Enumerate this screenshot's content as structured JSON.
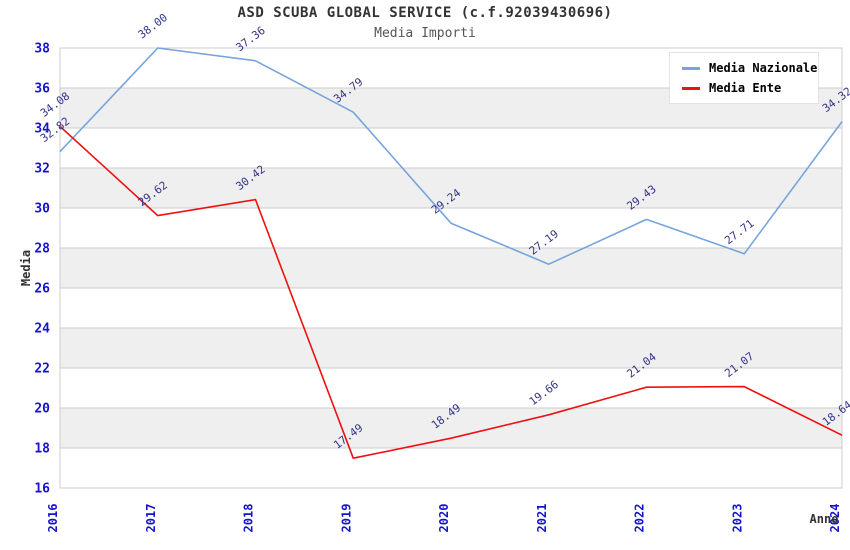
{
  "header": {
    "title": "ASD SCUBA GLOBAL SERVICE (c.f.92039430696)",
    "subtitle": "Media Importi"
  },
  "legend": {
    "items": [
      {
        "label": "Media Nazionale",
        "color": "#76a4dc"
      },
      {
        "label": "Media Ente",
        "color": "#ee1111"
      }
    ]
  },
  "chart_data": {
    "type": "line",
    "title": "ASD SCUBA GLOBAL SERVICE (c.f.92039430696)",
    "subtitle": "Media Importi",
    "xlabel": "Anno",
    "ylabel": "Media",
    "x": [
      2016,
      2017,
      2018,
      2019,
      2020,
      2021,
      2022,
      2023,
      2024
    ],
    "series": [
      {
        "name": "Media Nazionale",
        "color": "#76a4dc",
        "values": [
          32.82,
          38.0,
          37.36,
          34.79,
          29.24,
          27.19,
          29.43,
          27.71,
          34.32
        ]
      },
      {
        "name": "Media Ente",
        "color": "#ee1111",
        "values": [
          34.08,
          29.62,
          30.42,
          17.49,
          18.49,
          19.66,
          21.04,
          21.07,
          18.64
        ]
      }
    ],
    "ylim": [
      16,
      38
    ],
    "ytick_step": 2,
    "grid": "horizontal",
    "legend_position": "top-right",
    "bands": [
      [
        34,
        36
      ],
      [
        30,
        32
      ],
      [
        26,
        28
      ],
      [
        22,
        24
      ],
      [
        18,
        20
      ]
    ],
    "colors": {
      "tick_label": "#1414cc",
      "data_label": "#333388",
      "grid_line": "#cccccc",
      "band_fill": "#efefef",
      "axis_title": "#333333"
    }
  }
}
